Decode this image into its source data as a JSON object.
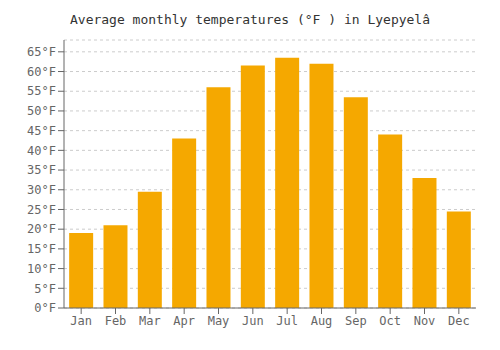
{
  "chart_data": {
    "type": "bar",
    "title": "Average monthly temperatures (°F ) in Lyepyelâ",
    "categories": [
      "Jan",
      "Feb",
      "Mar",
      "Apr",
      "May",
      "Jun",
      "Jul",
      "Aug",
      "Sep",
      "Oct",
      "Nov",
      "Dec"
    ],
    "values": [
      19,
      21,
      29.5,
      43,
      56,
      61.5,
      63.5,
      62,
      53.5,
      44,
      33,
      24.5
    ],
    "color": "#F5A800",
    "ylim": [
      0,
      68
    ],
    "yticks": [
      {
        "value": 0,
        "label": "0°F"
      },
      {
        "value": 5,
        "label": "5°F"
      },
      {
        "value": 10,
        "label": "10°F"
      },
      {
        "value": 15,
        "label": "15°F"
      },
      {
        "value": 20,
        "label": "20°F"
      },
      {
        "value": 25,
        "label": "25°F"
      },
      {
        "value": 30,
        "label": "30°F"
      },
      {
        "value": 35,
        "label": "35°F"
      },
      {
        "value": 40,
        "label": "40°F"
      },
      {
        "value": 45,
        "label": "45°F"
      },
      {
        "value": 50,
        "label": "50°F"
      },
      {
        "value": 55,
        "label": "55°F"
      },
      {
        "value": 60,
        "label": "60°F"
      },
      {
        "value": 65,
        "label": "65°F"
      }
    ],
    "grid": true
  }
}
